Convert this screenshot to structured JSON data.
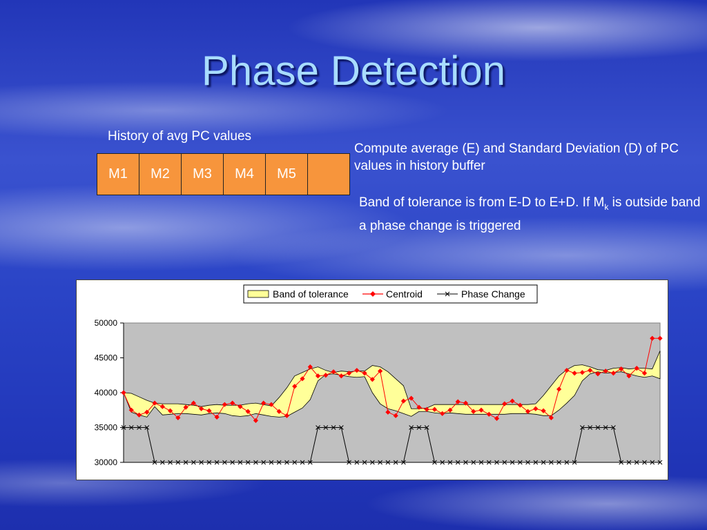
{
  "slide": {
    "title": "Phase Detection",
    "history_label": "History of avg PC values",
    "history_cells": [
      "M1",
      "M2",
      "M3",
      "M4",
      "M5",
      ""
    ],
    "description_1": "Compute average (E) and Standard Deviation (D) of PC values in history buffer",
    "description_2_before": "Band of tolerance is from E-D to E+D. If M",
    "description_2_sub": "k",
    "description_2_after": " is outside band a phase change is triggered"
  },
  "chart_data": {
    "type": "line",
    "title": "",
    "xlabel": "",
    "ylabel": "",
    "ylim": [
      30000,
      50000
    ],
    "yticks": [
      30000,
      35000,
      40000,
      45000,
      50000
    ],
    "ytick_labels": [
      "30000",
      "35000",
      "40000",
      "45000",
      "50000"
    ],
    "grid": false,
    "plot_background": "#c0c0c0",
    "legend_position": "top",
    "legend": [
      "Band of tolerance",
      "Centroid",
      "Phase Change"
    ],
    "x": [
      1,
      2,
      3,
      4,
      5,
      6,
      7,
      8,
      9,
      10,
      11,
      12,
      13,
      14,
      15,
      16,
      17,
      18,
      19,
      20,
      21,
      22,
      23,
      24,
      25,
      26,
      27,
      28,
      29,
      30,
      31,
      32,
      33,
      34,
      35,
      36,
      37,
      38,
      39,
      40,
      41,
      42,
      43,
      44,
      45,
      46,
      47,
      48,
      49,
      50,
      51,
      52,
      53,
      54,
      55,
      56,
      57,
      58,
      59,
      60,
      61,
      62,
      63,
      64,
      65,
      66,
      67,
      68,
      69,
      70
    ],
    "series": [
      {
        "name": "Band of tolerance",
        "kind": "band",
        "color": "#ffff99",
        "upper": [
          40000,
          39900,
          39400,
          38900,
          38500,
          38400,
          38400,
          38400,
          38300,
          38200,
          38000,
          38200,
          38300,
          38200,
          38200,
          38200,
          38400,
          38500,
          38300,
          38100,
          39300,
          40700,
          42400,
          42900,
          43400,
          43700,
          43200,
          42900,
          43100,
          43000,
          43100,
          43100,
          43900,
          43700,
          43000,
          42000,
          41000,
          37700,
          37700,
          37800,
          38300,
          38300,
          38300,
          38300,
          38300,
          38300,
          38300,
          38300,
          38300,
          38300,
          38300,
          38300,
          38300,
          38400,
          39600,
          41000,
          42400,
          43300,
          43900,
          44000,
          43700,
          43300,
          43200,
          43500,
          43600,
          43400,
          43500,
          43500,
          43400,
          46000
        ],
        "lower": [
          40000,
          37200,
          36800,
          36500,
          38000,
          36800,
          36900,
          37000,
          37000,
          36900,
          36800,
          37000,
          37100,
          37000,
          36700,
          36600,
          36700,
          37000,
          36800,
          36600,
          36500,
          36600,
          37200,
          37800,
          39000,
          41700,
          42600,
          42700,
          42500,
          42300,
          42200,
          42300,
          40000,
          38400,
          37700,
          37400,
          37000,
          36600,
          37300,
          37300,
          37100,
          37000,
          37100,
          37000,
          36900,
          36900,
          36900,
          36900,
          36900,
          36900,
          37000,
          37000,
          37000,
          36900,
          36700,
          36700,
          37500,
          38500,
          39600,
          41700,
          42700,
          43000,
          42800,
          42900,
          43000,
          42700,
          42400,
          42200,
          42400,
          42000
        ]
      },
      {
        "name": "Centroid",
        "kind": "line",
        "marker": "diamond",
        "color": "#ff0000",
        "values": [
          40000,
          37500,
          36800,
          37200,
          38500,
          38000,
          37400,
          36400,
          37900,
          38500,
          37700,
          37400,
          36500,
          38300,
          38500,
          38000,
          37300,
          36000,
          38500,
          38300,
          37300,
          36700,
          40900,
          42000,
          43700,
          42400,
          42500,
          43000,
          42400,
          42800,
          43200,
          42800,
          41900,
          43100,
          37200,
          36700,
          38800,
          39200,
          37900,
          37600,
          37600,
          37000,
          37500,
          38700,
          38500,
          37300,
          37500,
          36900,
          36300,
          38400,
          38800,
          38200,
          37300,
          37700,
          37400,
          36400,
          40500,
          43200,
          42800,
          42900,
          43200,
          42700,
          43100,
          42800,
          43400,
          42400,
          43500,
          42800,
          47800,
          47800
        ]
      },
      {
        "name": "Phase Change",
        "kind": "line",
        "marker": "x",
        "color": "#000000",
        "values": [
          35000,
          35000,
          35000,
          35000,
          30000,
          30000,
          30000,
          30000,
          30000,
          30000,
          30000,
          30000,
          30000,
          30000,
          30000,
          30000,
          30000,
          30000,
          30000,
          30000,
          30000,
          30000,
          30000,
          30000,
          30000,
          35000,
          35000,
          35000,
          35000,
          30000,
          30000,
          30000,
          30000,
          30000,
          30000,
          30000,
          30000,
          35000,
          35000,
          35000,
          30000,
          30000,
          30000,
          30000,
          30000,
          30000,
          30000,
          30000,
          30000,
          30000,
          30000,
          30000,
          30000,
          30000,
          30000,
          30000,
          30000,
          30000,
          30000,
          35000,
          35000,
          35000,
          35000,
          35000,
          30000,
          30000,
          30000,
          30000,
          30000,
          30000
        ]
      }
    ]
  }
}
